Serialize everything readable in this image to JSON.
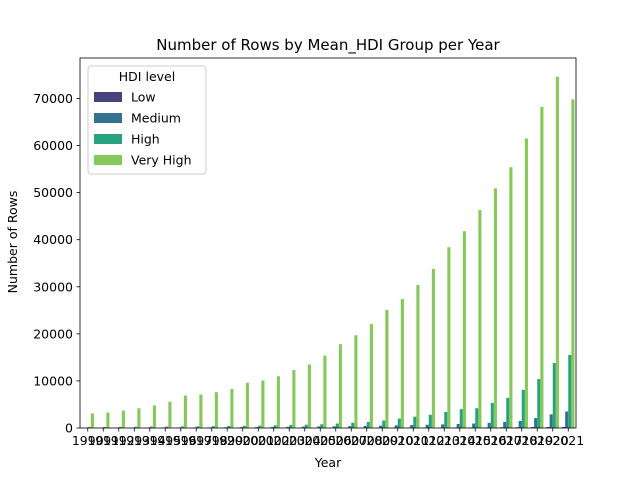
{
  "chart_data": {
    "type": "bar",
    "title": "Number of Rows by Mean_HDI Group per Year",
    "xlabel": "Year",
    "ylabel": "Number of Rows",
    "ylim": [
      0,
      78600
    ],
    "yticks": [
      0,
      10000,
      20000,
      30000,
      40000,
      50000,
      60000,
      70000
    ],
    "ytick_labels": [
      "0",
      "10000",
      "20000",
      "30000",
      "40000",
      "50000",
      "60000",
      "70000"
    ],
    "grid": false,
    "legend": {
      "title": "HDI level",
      "position": "top-left"
    },
    "categories": [
      "1990",
      "1991",
      "1992",
      "1993",
      "1994",
      "1995",
      "1996",
      "1997",
      "1998",
      "1999",
      "2000",
      "2001",
      "2002",
      "2003",
      "2004",
      "2005",
      "2006",
      "2007",
      "2008",
      "2009",
      "2010",
      "2011",
      "2012",
      "2013",
      "2014",
      "2015",
      "2016",
      "2017",
      "2018",
      "2019",
      "2020",
      "2021"
    ],
    "series": [
      {
        "name": "Low",
        "color": "#46437f",
        "values": [
          20,
          20,
          20,
          20,
          20,
          20,
          20,
          20,
          20,
          20,
          20,
          20,
          30,
          30,
          30,
          40,
          40,
          50,
          60,
          60,
          70,
          80,
          90,
          100,
          110,
          120,
          130,
          150,
          170,
          190,
          210,
          230
        ]
      },
      {
        "name": "Medium",
        "color": "#33718e",
        "values": [
          60,
          70,
          80,
          90,
          100,
          110,
          120,
          130,
          140,
          160,
          180,
          200,
          220,
          250,
          280,
          320,
          360,
          400,
          450,
          500,
          560,
          620,
          690,
          770,
          850,
          950,
          1100,
          1300,
          1500,
          2100,
          2900,
          3500
        ]
      },
      {
        "name": "High",
        "color": "#28a17f",
        "values": [
          200,
          220,
          240,
          260,
          290,
          310,
          340,
          360,
          390,
          420,
          460,
          500,
          560,
          620,
          700,
          800,
          950,
          1100,
          1300,
          1600,
          2000,
          2400,
          2800,
          3400,
          4000,
          4200,
          5300,
          6400,
          8100,
          10400,
          13800,
          15500
        ]
      },
      {
        "name": "Very High",
        "color": "#86c95a",
        "values": [
          3100,
          3300,
          3700,
          4200,
          4800,
          5600,
          6900,
          7100,
          7600,
          8300,
          9600,
          10100,
          11000,
          12300,
          13500,
          15400,
          17800,
          19700,
          22100,
          25100,
          27400,
          30400,
          33800,
          38400,
          41800,
          46300,
          50900,
          55400,
          61500,
          68200,
          74600,
          69800
        ]
      }
    ]
  }
}
